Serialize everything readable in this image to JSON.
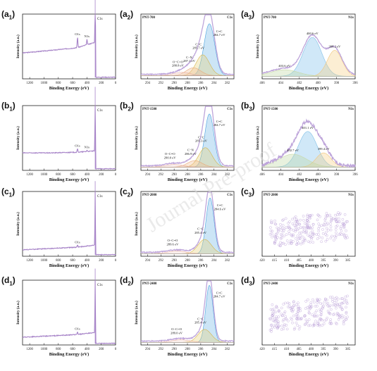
{
  "figure": {
    "watermark": "Journal Pre-proof",
    "colors": {
      "envelope": "#b79bd6",
      "survey": "#a784c8",
      "pi": "#8c8c8c",
      "cc": "#4aa3df",
      "cn": "#d6b44a",
      "cooc": "#e8a978",
      "n1": "#7fbfe6",
      "n2": "#c8d9a4",
      "n3": "#f0c47a",
      "axis": "#222222"
    }
  },
  "chart_data": [
    {
      "id": "a1",
      "label": "a",
      "sub": "1",
      "type": "line",
      "kind": "survey",
      "xlabel": "Binding Energy (eV)",
      "ylabel": "Intensity (a.u.)",
      "xlim": [
        1300,
        0
      ],
      "xticks": [
        1200,
        1000,
        800,
        600,
        400,
        200,
        0
      ],
      "baseline": [
        [
          1300,
          0.4
        ],
        [
          900,
          0.44
        ],
        [
          540,
          0.48
        ],
        [
          300,
          0.56
        ],
        [
          286,
          0.58
        ]
      ],
      "peaks": [
        {
          "name": "O1s",
          "x": 532,
          "height": 0.16,
          "width": 5
        },
        {
          "name": "N1s",
          "x": 400,
          "height": 0.08,
          "width": 5
        },
        {
          "name": "C1s",
          "x": 285,
          "height": 0.96,
          "width": 3
        }
      ]
    },
    {
      "id": "a2",
      "label": "a",
      "sub": "2",
      "type": "line",
      "kind": "c1s",
      "sample": "PNT-700",
      "corner": "C1s",
      "xlabel": "Binding Energy (eV)",
      "ylabel": "Intensity (a.u.)",
      "xlim": [
        295,
        281
      ],
      "xticks": [
        294,
        292,
        290,
        288,
        286,
        284,
        282
      ],
      "background": 0.05,
      "components": [
        {
          "name": "C=C",
          "center": 284.7,
          "height": 0.8,
          "width": 0.8,
          "label": "C=C\n284.7 eV"
        },
        {
          "name": "C-C",
          "center": 285.7,
          "height": 0.32,
          "width": 1.0,
          "label": "C−C\n285.7 eV"
        },
        {
          "name": "C-N",
          "center": 287.1,
          "height": 0.12,
          "width": 1.1,
          "label": "C−N\n287.1 eV"
        },
        {
          "name": "O-C=O",
          "center": 288.8,
          "height": 0.05,
          "width": 1.3,
          "label": "O−C=O\n288.8 eV"
        }
      ]
    },
    {
      "id": "a3",
      "label": "a",
      "sub": "3",
      "type": "line",
      "kind": "n1s",
      "sample": "PNT-700",
      "corner": "N1s",
      "xlabel": "Binding Energy (eV)",
      "ylabel": "Intensity (a.u.)",
      "xlim": [
        406,
        396
      ],
      "xticks": [
        406,
        404,
        402,
        400,
        398,
        396
      ],
      "background": 0.04,
      "components": [
        {
          "name": "N1",
          "center": 400.6,
          "height": 0.6,
          "width": 1.0,
          "label": "400.6 eV"
        },
        {
          "name": "N2",
          "center": 398.2,
          "height": 0.4,
          "width": 0.8,
          "label": "398.2 eV"
        },
        {
          "name": "N3",
          "center": 403.6,
          "height": 0.1,
          "width": 1.5,
          "label": "403.6 eV"
        }
      ]
    },
    {
      "id": "b1",
      "label": "b",
      "sub": "1",
      "type": "line",
      "kind": "survey",
      "xlabel": "Binding Energy (eV)",
      "ylabel": "Intensity (a.u.)",
      "xlim": [
        1300,
        0
      ],
      "xticks": [
        1200,
        1000,
        800,
        600,
        400,
        200,
        0
      ],
      "baseline": [
        [
          1300,
          0.27
        ],
        [
          900,
          0.27
        ],
        [
          540,
          0.28
        ],
        [
          300,
          0.3
        ],
        [
          286,
          0.31
        ]
      ],
      "peaks": [
        {
          "name": "O1s",
          "x": 532,
          "height": 0.05,
          "width": 5
        },
        {
          "name": "N1s",
          "x": 400,
          "height": 0.02,
          "width": 5
        },
        {
          "name": "C1s",
          "x": 285,
          "height": 0.98,
          "width": 3
        }
      ]
    },
    {
      "id": "b2",
      "label": "b",
      "sub": "2",
      "type": "line",
      "kind": "c1s",
      "sample": "PNT-1500",
      "corner": "C1s",
      "xlabel": "Binding Energy (eV)",
      "ylabel": "Intensity (a.u.)",
      "xlim": [
        295,
        281
      ],
      "xticks": [
        294,
        292,
        290,
        288,
        286,
        284,
        282
      ],
      "background": 0.05,
      "components": [
        {
          "name": "C=C",
          "center": 284.7,
          "height": 0.82,
          "width": 0.7,
          "label": "C=C\n284.7 eV"
        },
        {
          "name": "C-C",
          "center": 285.3,
          "height": 0.3,
          "width": 1.0,
          "label": "C−C\n285.3 eV"
        },
        {
          "name": "C-N",
          "center": 286.9,
          "height": 0.1,
          "width": 1.1,
          "label": "C−N\n286.9 eV"
        },
        {
          "name": "O-C=O",
          "center": 290.0,
          "height": 0.04,
          "width": 1.4,
          "label": "O−C=O\n290.0 eV"
        }
      ]
    },
    {
      "id": "b3",
      "label": "b",
      "sub": "3",
      "type": "line",
      "kind": "n1s",
      "sample": "PNT-1500",
      "corner": "N1s",
      "xlabel": "Binding Energy (eV)",
      "ylabel": "Intensity (a.u.)",
      "xlim": [
        406,
        396
      ],
      "xticks": [
        406,
        404,
        402,
        400,
        398,
        396
      ],
      "background": 0.05,
      "noise": 0.05,
      "components": [
        {
          "name": "N1",
          "center": 401.1,
          "height": 0.55,
          "width": 1.0,
          "label": "401.1 eV"
        },
        {
          "name": "N2",
          "center": 399.4,
          "height": 0.22,
          "width": 0.8,
          "label": "399.4 eV"
        },
        {
          "name": "N3",
          "center": 402.7,
          "height": 0.2,
          "width": 1.5,
          "label": "402.7 eV"
        }
      ]
    },
    {
      "id": "c1",
      "label": "c",
      "sub": "1",
      "type": "line",
      "kind": "survey",
      "xlabel": "Binding Energy (eV)",
      "ylabel": "Intensity (a.u.)",
      "xlim": [
        1300,
        0
      ],
      "xticks": [
        1200,
        1000,
        800,
        600,
        400,
        200,
        0
      ],
      "baseline": [
        [
          1300,
          0.1
        ],
        [
          900,
          0.12
        ],
        [
          540,
          0.14
        ],
        [
          300,
          0.17
        ],
        [
          286,
          0.18
        ]
      ],
      "peaks": [
        {
          "name": "O1s",
          "x": 532,
          "height": 0.03,
          "width": 5
        },
        {
          "name": "C1s",
          "x": 285,
          "height": 0.98,
          "width": 3
        }
      ]
    },
    {
      "id": "c2",
      "label": "c",
      "sub": "2",
      "type": "line",
      "kind": "c1s",
      "sample": "PNT-2000",
      "corner": "C1s",
      "xlabel": "Binding Energy (eV)",
      "ylabel": "Intensity (a.u.)",
      "xlim": [
        295,
        281
      ],
      "xticks": [
        294,
        292,
        290,
        288,
        286,
        284,
        282
      ],
      "background": 0.04,
      "components": [
        {
          "name": "C=C",
          "center": 284.6,
          "height": 0.86,
          "width": 0.6,
          "label": "C=C\n284.6 eV"
        },
        {
          "name": "C-C",
          "center": 285.4,
          "height": 0.22,
          "width": 1.0,
          "label": "C−C\n285.4 eV"
        },
        {
          "name": "O-C=O",
          "center": 289.6,
          "height": 0.04,
          "width": 1.4,
          "label": "O−C=O\n289.6 eV"
        }
      ]
    },
    {
      "id": "c3",
      "label": "c",
      "sub": "3",
      "type": "scatter",
      "kind": "noise",
      "sample": "PNT-2000",
      "corner": "N1s",
      "xlabel": "Binding Energy (eV)",
      "ylabel": "",
      "xlim": [
        420,
        382
      ],
      "xticks": [
        420,
        415,
        410,
        405,
        400,
        395,
        390,
        385
      ],
      "level": 0.42,
      "spread": 0.22,
      "count": 260
    },
    {
      "id": "d1",
      "label": "d",
      "sub": "1",
      "type": "line",
      "kind": "survey",
      "xlabel": "Binding Energy (eV)",
      "ylabel": "Intensity (a.u.)",
      "xlim": [
        1300,
        0
      ],
      "xticks": [
        1200,
        1000,
        800,
        600,
        400,
        200,
        0
      ],
      "baseline": [
        [
          1300,
          0.12
        ],
        [
          900,
          0.14
        ],
        [
          540,
          0.16
        ],
        [
          300,
          0.19
        ],
        [
          286,
          0.2
        ]
      ],
      "peaks": [
        {
          "name": "O1s",
          "x": 532,
          "height": 0.04,
          "width": 5
        },
        {
          "name": "C1s",
          "x": 285,
          "height": 0.98,
          "width": 3
        }
      ]
    },
    {
      "id": "d2",
      "label": "d",
      "sub": "2",
      "type": "line",
      "kind": "c1s",
      "sample": "PNT-2400",
      "corner": "C1s",
      "xlabel": "Binding Energy (eV)",
      "ylabel": "Intensity (a.u.)",
      "xlim": [
        295,
        281
      ],
      "xticks": [
        294,
        292,
        290,
        288,
        286,
        284,
        282
      ],
      "background": 0.04,
      "components": [
        {
          "name": "C=C",
          "center": 284.7,
          "height": 0.88,
          "width": 0.55,
          "label": "C=C\n284.7 eV"
        },
        {
          "name": "C-C",
          "center": 285.4,
          "height": 0.2,
          "width": 1.0,
          "label": "C−C\n285.4 eV"
        },
        {
          "name": "O-C=O",
          "center": 289.0,
          "height": 0.04,
          "width": 1.4,
          "label": "O−C=O\n289.0 eV"
        }
      ]
    },
    {
      "id": "d3",
      "label": "d",
      "sub": "3",
      "type": "scatter",
      "kind": "noise",
      "sample": "PNT-2400",
      "corner": "N1s",
      "xlabel": "Binding Energy (eV)",
      "ylabel": "",
      "xlim": [
        420,
        382
      ],
      "xticks": [
        420,
        415,
        410,
        405,
        400,
        395,
        390,
        385
      ],
      "level": 0.48,
      "spread": 0.22,
      "count": 260
    }
  ]
}
